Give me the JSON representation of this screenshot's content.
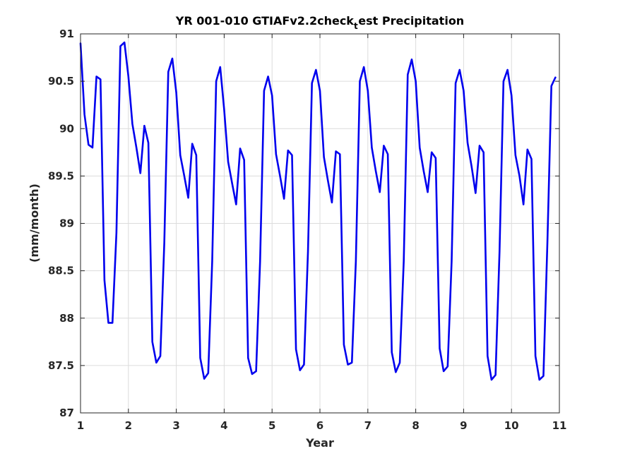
{
  "chart_data": {
    "type": "line",
    "title": "YR 001-010 GTIAFv2.2check",
    "title_subscript": "t",
    "title_rest": "est Precipitation",
    "xlabel": "Year",
    "ylabel": "(mm/month)",
    "xlim": [
      1,
      11
    ],
    "ylim": [
      87,
      91
    ],
    "xticks": [
      1,
      2,
      3,
      4,
      5,
      6,
      7,
      8,
      9,
      10,
      11
    ],
    "xtick_labels": [
      "1",
      "2",
      "3",
      "4",
      "5",
      "6",
      "7",
      "8",
      "9",
      "10",
      "11"
    ],
    "yticks": [
      87,
      87.5,
      88,
      88.5,
      89,
      89.5,
      90,
      90.5,
      91
    ],
    "ytick_labels": [
      "87",
      "87.5",
      "88",
      "88.5",
      "89",
      "89.5",
      "90",
      "90.5",
      "91"
    ],
    "grid": true,
    "series": [
      {
        "color": "#0000ee",
        "x": [
          1.0,
          1.083,
          1.167,
          1.25,
          1.333,
          1.417,
          1.5,
          1.583,
          1.667,
          1.75,
          1.833,
          1.917,
          2.0,
          2.083,
          2.167,
          2.25,
          2.333,
          2.417,
          2.5,
          2.583,
          2.667,
          2.75,
          2.833,
          2.917,
          3.0,
          3.083,
          3.167,
          3.25,
          3.333,
          3.417,
          3.5,
          3.583,
          3.667,
          3.75,
          3.833,
          3.917,
          4.0,
          4.083,
          4.167,
          4.25,
          4.333,
          4.417,
          4.5,
          4.583,
          4.667,
          4.75,
          4.833,
          4.917,
          5.0,
          5.083,
          5.167,
          5.25,
          5.333,
          5.417,
          5.5,
          5.583,
          5.667,
          5.75,
          5.833,
          5.917,
          6.0,
          6.083,
          6.167,
          6.25,
          6.333,
          6.417,
          6.5,
          6.583,
          6.667,
          6.75,
          6.833,
          6.917,
          7.0,
          7.083,
          7.167,
          7.25,
          7.333,
          7.417,
          7.5,
          7.583,
          7.667,
          7.75,
          7.833,
          7.917,
          8.0,
          8.083,
          8.167,
          8.25,
          8.333,
          8.417,
          8.5,
          8.583,
          8.667,
          8.75,
          8.833,
          8.917,
          9.0,
          9.083,
          9.167,
          9.25,
          9.333,
          9.417,
          9.5,
          9.583,
          9.667,
          9.75,
          9.833,
          9.917,
          10.0,
          10.083,
          10.167,
          10.25,
          10.333,
          10.417,
          10.5,
          10.583,
          10.667,
          10.75,
          10.833,
          10.917
        ],
        "y": [
          90.9,
          90.15,
          89.83,
          89.8,
          90.55,
          90.52,
          88.4,
          87.95,
          87.95,
          88.9,
          90.87,
          90.91,
          90.55,
          90.05,
          89.8,
          89.53,
          90.03,
          89.85,
          87.75,
          87.53,
          87.6,
          88.8,
          90.6,
          90.74,
          90.38,
          89.72,
          89.5,
          89.27,
          89.84,
          89.72,
          87.58,
          87.36,
          87.42,
          88.6,
          90.5,
          90.65,
          90.2,
          89.65,
          89.42,
          89.2,
          89.79,
          89.67,
          87.58,
          87.41,
          87.44,
          88.6,
          90.4,
          90.55,
          90.35,
          89.73,
          89.5,
          89.26,
          89.77,
          89.72,
          87.67,
          87.45,
          87.51,
          88.7,
          90.48,
          90.62,
          90.4,
          89.7,
          89.45,
          89.22,
          89.76,
          89.73,
          87.72,
          87.51,
          87.53,
          88.6,
          90.5,
          90.65,
          90.4,
          89.8,
          89.55,
          89.33,
          89.82,
          89.73,
          87.64,
          87.43,
          87.53,
          88.6,
          90.57,
          90.73,
          90.5,
          89.8,
          89.55,
          89.33,
          89.75,
          89.69,
          87.68,
          87.44,
          87.49,
          88.6,
          90.48,
          90.62,
          90.4,
          89.85,
          89.6,
          89.32,
          89.82,
          89.75,
          87.6,
          87.35,
          87.4,
          88.7,
          90.5,
          90.62,
          90.35,
          89.72,
          89.5,
          89.2,
          89.78,
          89.68,
          87.6,
          87.35,
          87.39,
          88.8,
          90.45,
          90.54
        ]
      }
    ]
  }
}
